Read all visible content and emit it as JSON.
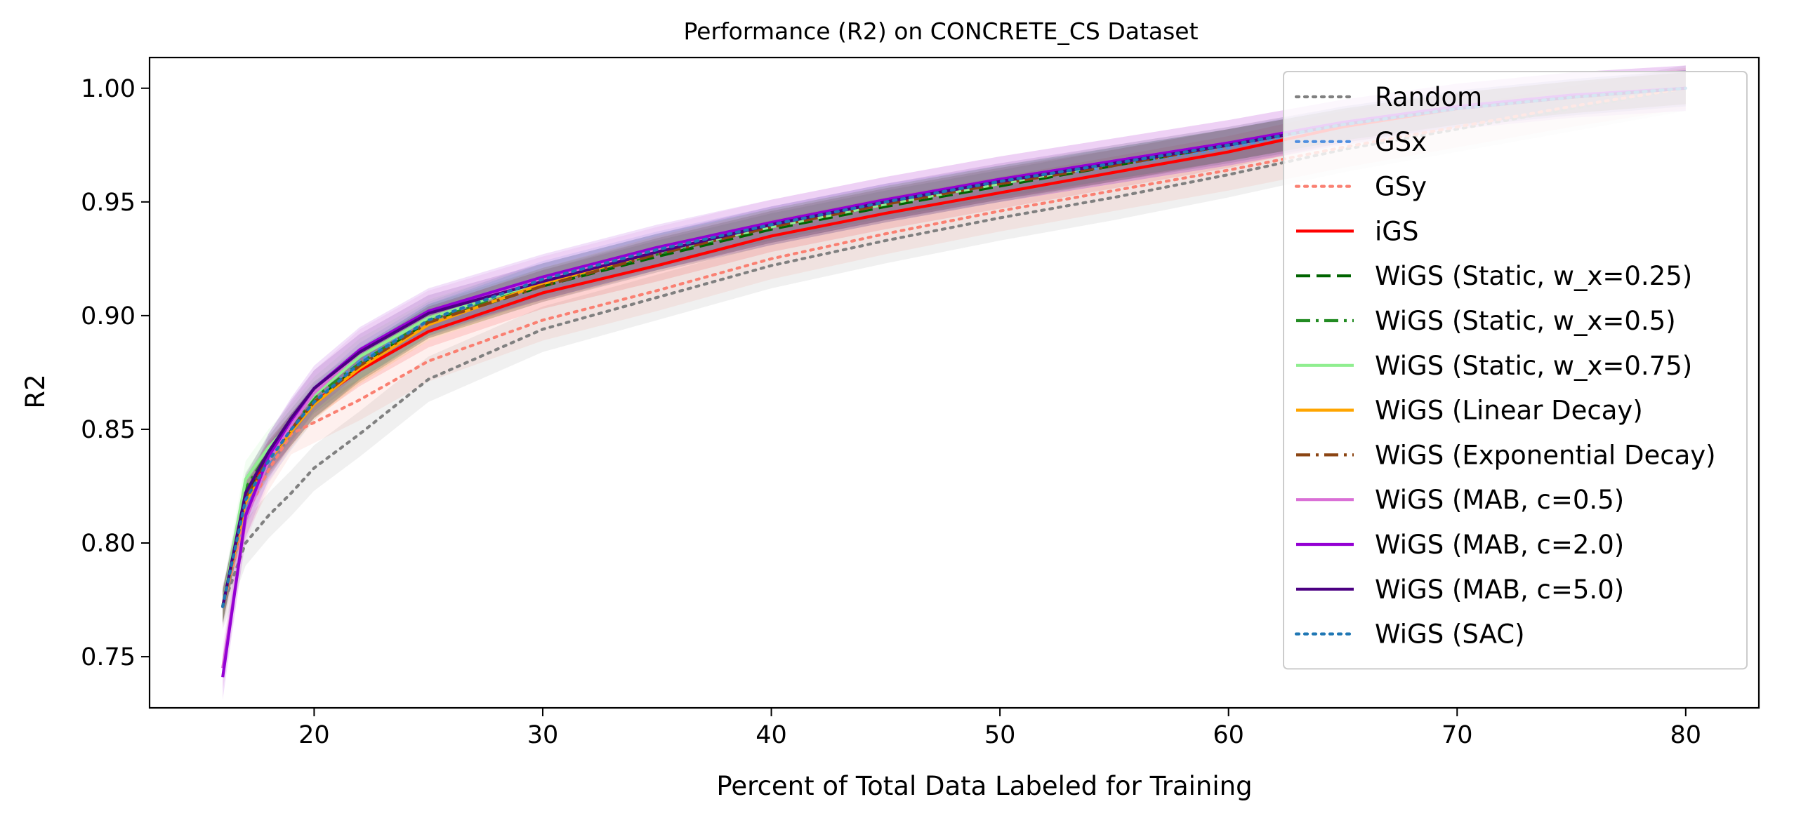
{
  "chart_data": {
    "type": "line",
    "title": "Performance (R2) on CONCRETE_CS Dataset",
    "xlabel": "Percent of Total Data Labeled for Training",
    "ylabel": "R2",
    "xlim": [
      12.8,
      83.2
    ],
    "ylim": [
      0.7275,
      1.0135
    ],
    "xticks": [
      20,
      30,
      40,
      50,
      60,
      70,
      80
    ],
    "yticks": [
      0.75,
      0.8,
      0.85,
      0.9,
      0.95,
      1.0
    ],
    "xtick_labels": [
      "20",
      "30",
      "40",
      "50",
      "60",
      "70",
      "80"
    ],
    "ytick_labels": [
      "0.75",
      "0.80",
      "0.85",
      "0.90",
      "0.95",
      "1.00"
    ],
    "grid": false,
    "legend_position": "top-right",
    "x": [
      16,
      17,
      18,
      19,
      20,
      22,
      25,
      30,
      35,
      40,
      45,
      50,
      55,
      60,
      65,
      70,
      75,
      80
    ],
    "series": [
      {
        "name": "Random",
        "color": "#808080",
        "style": "dotted",
        "band": 0.01,
        "values": [
          0.772,
          0.8,
          0.812,
          0.822,
          0.833,
          0.848,
          0.872,
          0.894,
          0.908,
          0.922,
          0.933,
          0.943,
          0.952,
          0.962,
          0.973,
          0.982,
          0.991,
          1.0
        ]
      },
      {
        "name": "GSx",
        "color": "#4f8fe0",
        "style": "dotted",
        "band": 0.008,
        "values": [
          0.772,
          0.815,
          0.835,
          0.849,
          0.862,
          0.88,
          0.898,
          0.916,
          0.929,
          0.94,
          0.95,
          0.958,
          0.966,
          0.974,
          0.984,
          0.991,
          0.996,
          1.0
        ]
      },
      {
        "name": "GSy",
        "color": "#fa8072",
        "style": "dotted",
        "band": 0.009,
        "values": [
          0.772,
          0.812,
          0.832,
          0.848,
          0.853,
          0.863,
          0.88,
          0.898,
          0.911,
          0.925,
          0.936,
          0.946,
          0.955,
          0.964,
          0.974,
          0.983,
          0.992,
          1.0
        ]
      },
      {
        "name": "iGS",
        "color": "#ff0000",
        "style": "solid",
        "band": 0.007,
        "values": [
          0.772,
          0.82,
          0.838,
          0.85,
          0.862,
          0.876,
          0.893,
          0.91,
          0.922,
          0.935,
          0.945,
          0.954,
          0.963,
          0.972,
          0.983,
          0.991,
          0.996,
          1.0
        ]
      },
      {
        "name": "WiGS (Static, w_x=0.25)",
        "color": "#006400",
        "style": "dashed",
        "band": 0.007,
        "values": [
          0.772,
          0.822,
          0.838,
          0.85,
          0.862,
          0.878,
          0.897,
          0.913,
          0.926,
          0.938,
          0.948,
          0.957,
          0.966,
          0.975,
          0.984,
          0.991,
          0.996,
          1.0
        ]
      },
      {
        "name": "WiGS (Static, w_x=0.5)",
        "color": "#228b22",
        "style": "dashdot",
        "band": 0.007,
        "values": [
          0.772,
          0.824,
          0.84,
          0.852,
          0.864,
          0.879,
          0.898,
          0.914,
          0.927,
          0.939,
          0.949,
          0.958,
          0.967,
          0.975,
          0.984,
          0.991,
          0.996,
          1.0
        ]
      },
      {
        "name": "WiGS (Static, w_x=0.75)",
        "color": "#90ee90",
        "style": "solid",
        "band": 0.008,
        "values": [
          0.772,
          0.828,
          0.842,
          0.853,
          0.865,
          0.882,
          0.899,
          0.915,
          0.928,
          0.939,
          0.949,
          0.958,
          0.967,
          0.975,
          0.984,
          0.991,
          0.996,
          1.0
        ]
      },
      {
        "name": "WiGS (Linear Decay)",
        "color": "#ffa500",
        "style": "solid",
        "band": 0.007,
        "values": [
          0.772,
          0.818,
          0.836,
          0.849,
          0.861,
          0.877,
          0.896,
          0.914,
          0.928,
          0.94,
          0.95,
          0.959,
          0.967,
          0.975,
          0.984,
          0.991,
          0.996,
          1.0
        ]
      },
      {
        "name": "WiGS (Exponential Decay)",
        "color": "#8b4513",
        "style": "dashdot",
        "band": 0.007,
        "values": [
          0.772,
          0.82,
          0.837,
          0.85,
          0.862,
          0.878,
          0.897,
          0.913,
          0.927,
          0.939,
          0.949,
          0.958,
          0.966,
          0.975,
          0.984,
          0.991,
          0.996,
          1.0
        ]
      },
      {
        "name": "WiGS (MAB, c=0.5)",
        "color": "#da70d6",
        "style": "solid",
        "band": 0.01,
        "values": [
          0.745,
          0.81,
          0.836,
          0.852,
          0.866,
          0.884,
          0.901,
          0.916,
          0.929,
          0.941,
          0.951,
          0.96,
          0.968,
          0.976,
          0.985,
          0.992,
          0.997,
          1.0
        ]
      },
      {
        "name": "WiGS (MAB, c=2.0)",
        "color": "#9400d3",
        "style": "solid",
        "band": 0.01,
        "values": [
          0.741,
          0.812,
          0.838,
          0.854,
          0.868,
          0.885,
          0.902,
          0.917,
          0.93,
          0.941,
          0.951,
          0.96,
          0.968,
          0.976,
          0.985,
          0.992,
          0.997,
          1.0
        ]
      },
      {
        "name": "WiGS (MAB, c=5.0)",
        "color": "#4b0082",
        "style": "solid",
        "band": 0.008,
        "values": [
          0.772,
          0.822,
          0.84,
          0.855,
          0.868,
          0.884,
          0.901,
          0.915,
          0.928,
          0.94,
          0.95,
          0.959,
          0.967,
          0.975,
          0.984,
          0.991,
          0.996,
          1.0
        ]
      },
      {
        "name": "WiGS (SAC)",
        "color": "#1f77b4",
        "style": "dotted",
        "band": 0.007,
        "values": [
          0.772,
          0.819,
          0.836,
          0.85,
          0.862,
          0.879,
          0.898,
          0.916,
          0.929,
          0.94,
          0.95,
          0.959,
          0.967,
          0.975,
          0.984,
          0.991,
          0.996,
          1.0
        ]
      }
    ]
  }
}
